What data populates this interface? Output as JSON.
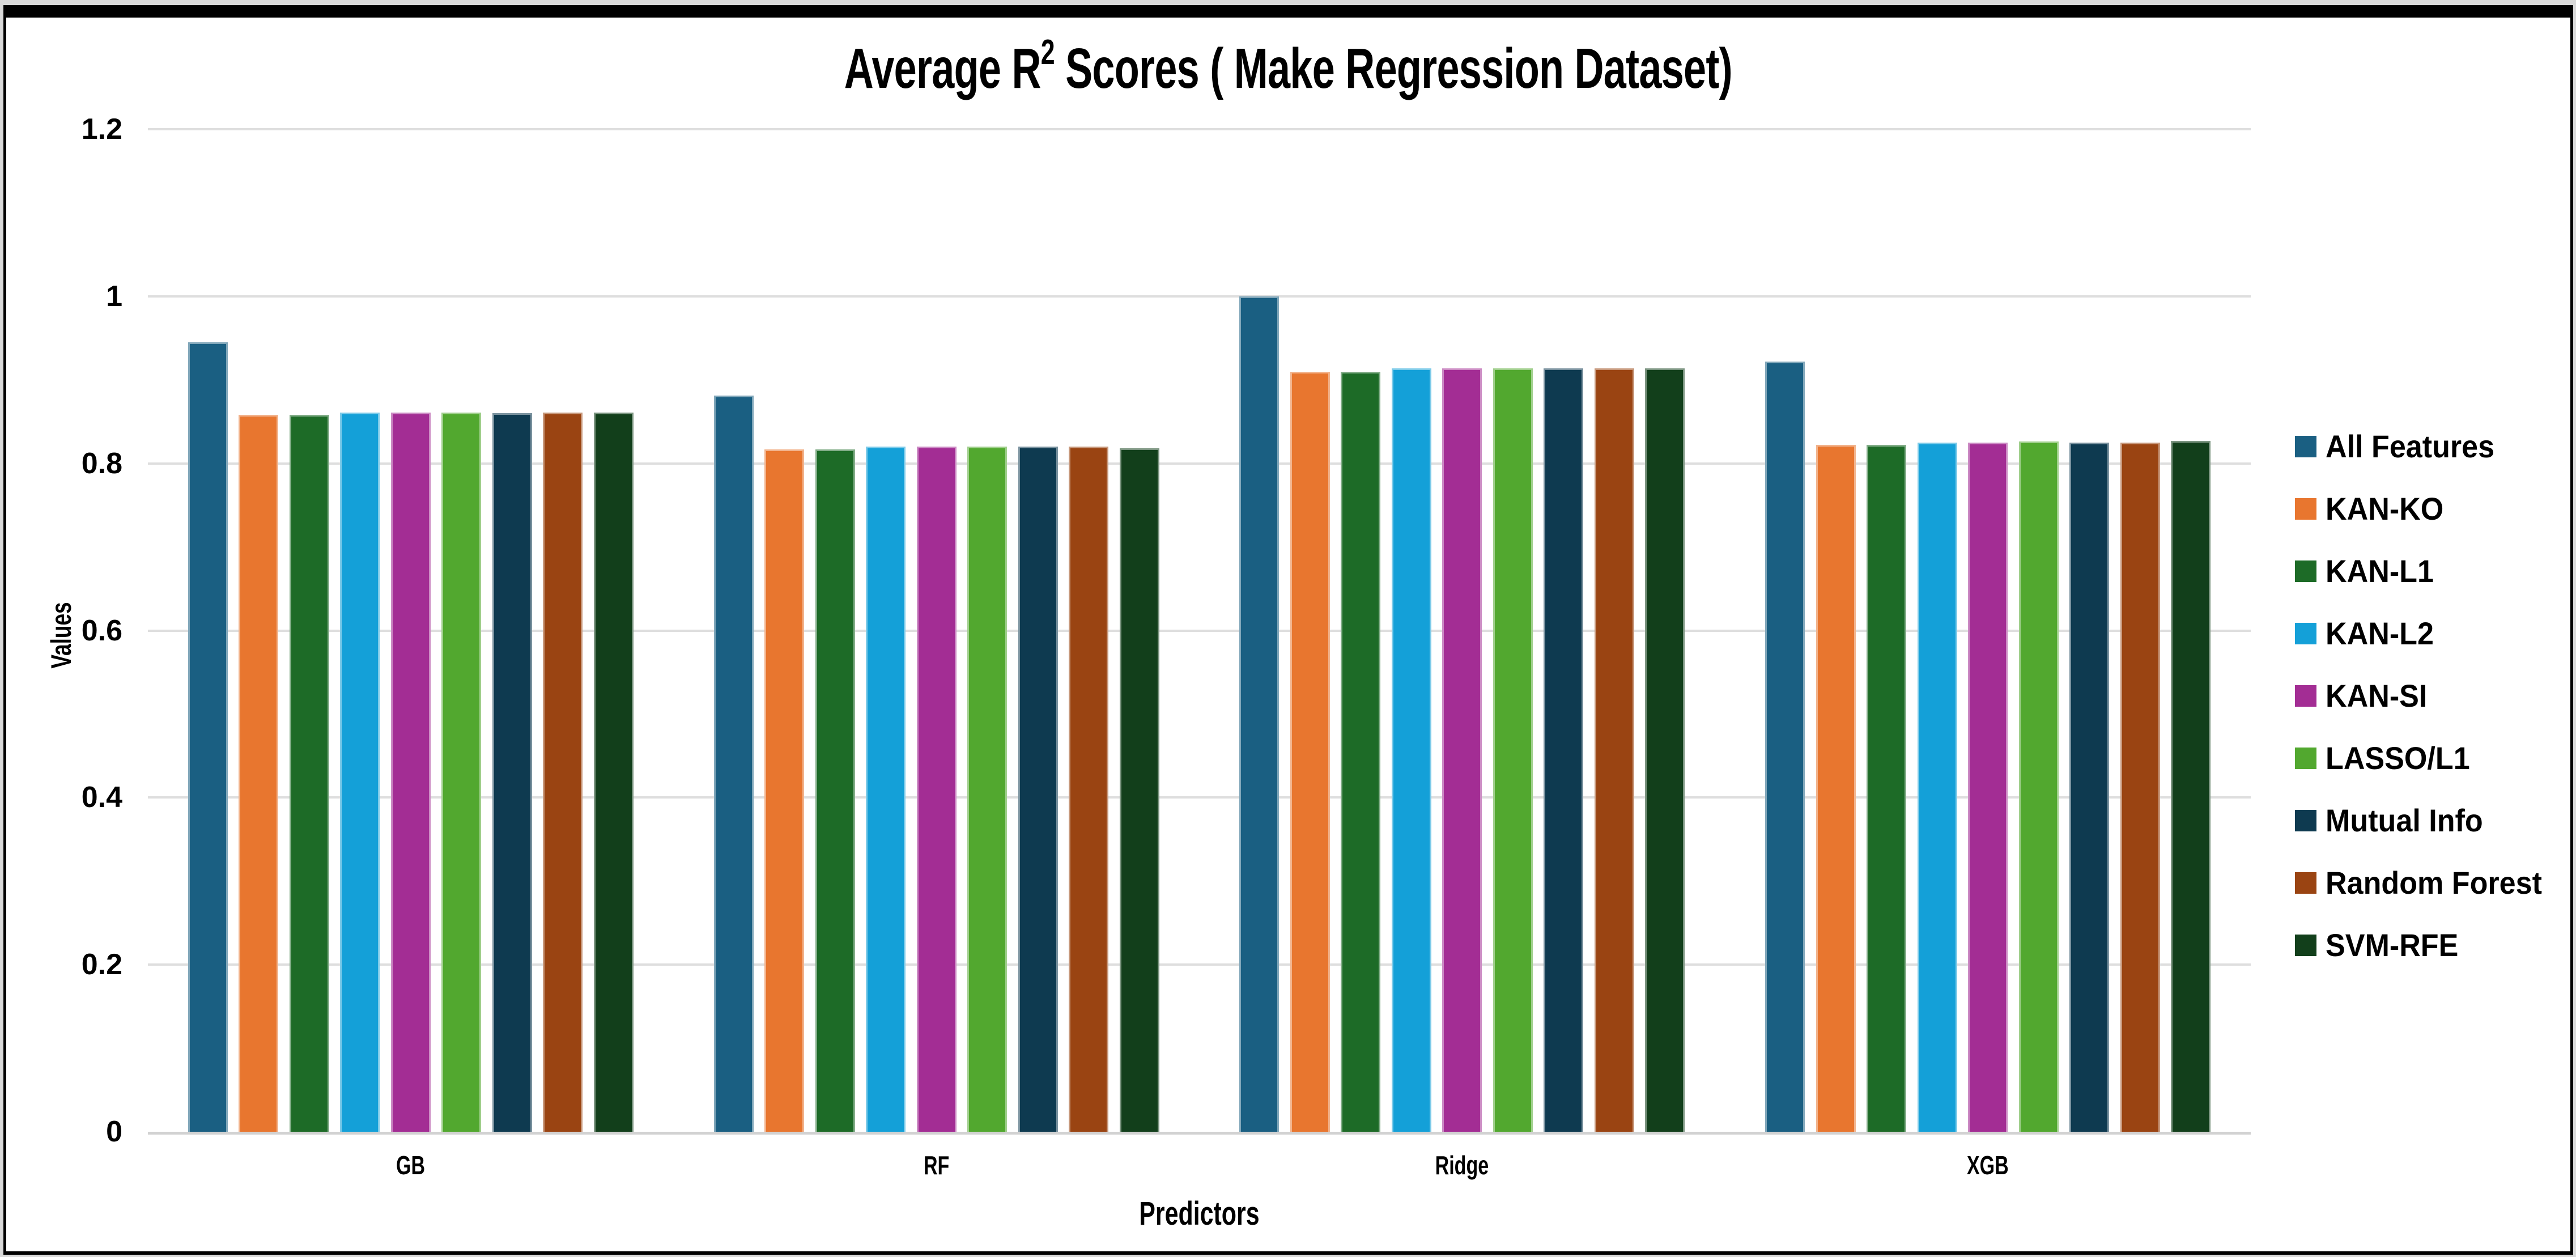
{
  "figure": {
    "title_prefix": "Average R",
    "title_sup": "2",
    "title_suffix": " Scores ( Make Regression Dataset)",
    "frame_color": "#000000",
    "background_color": "#ffffff",
    "outer_margin_color": "#d9d9d9"
  },
  "chart_data": {
    "type": "bar",
    "title": "Average R² Scores ( Make Regression Dataset)",
    "xlabel": "Predictors",
    "ylabel": "Values",
    "ylim": [
      0,
      1.2
    ],
    "grid": true,
    "grid_color": "#dedede",
    "axis_line_color": "#d2d2d2",
    "legend_position": "right",
    "y_ticks": [
      {
        "label": "1.2",
        "value": 1.2
      },
      {
        "label": "1",
        "value": 1.0
      },
      {
        "label": "0.8",
        "value": 0.8
      },
      {
        "label": "0.6",
        "value": 0.6
      },
      {
        "label": "0.4",
        "value": 0.4
      },
      {
        "label": "0.2",
        "value": 0.2
      },
      {
        "label": "0",
        "value": 0.0
      }
    ],
    "categories": [
      "GB",
      "RF",
      "Ridge",
      "XGB"
    ],
    "series": [
      {
        "name": "All Features",
        "color": "#1a5f82",
        "values": [
          0.945,
          0.881,
          1.0,
          0.922
        ]
      },
      {
        "name": "KAN-KO",
        "color": "#e8762f",
        "values": [
          0.858,
          0.817,
          0.91,
          0.822
        ]
      },
      {
        "name": "KAN-L1",
        "color": "#1d6b27",
        "values": [
          0.858,
          0.817,
          0.91,
          0.822
        ]
      },
      {
        "name": "KAN-L2",
        "color": "#14a0d8",
        "values": [
          0.861,
          0.82,
          0.914,
          0.825
        ]
      },
      {
        "name": "KAN-SI",
        "color": "#a32d94",
        "values": [
          0.861,
          0.82,
          0.914,
          0.825
        ]
      },
      {
        "name": "LASSO/L1",
        "color": "#52a82f",
        "values": [
          0.861,
          0.82,
          0.914,
          0.826
        ]
      },
      {
        "name": "Mutual Info",
        "color": "#0e3a50",
        "values": [
          0.86,
          0.82,
          0.914,
          0.825
        ]
      },
      {
        "name": "Random Forest",
        "color": "#9a4412",
        "values": [
          0.861,
          0.82,
          0.914,
          0.825
        ]
      },
      {
        "name": "SVM-RFE",
        "color": "#123f1b",
        "values": [
          0.861,
          0.818,
          0.914,
          0.827
        ]
      }
    ]
  }
}
